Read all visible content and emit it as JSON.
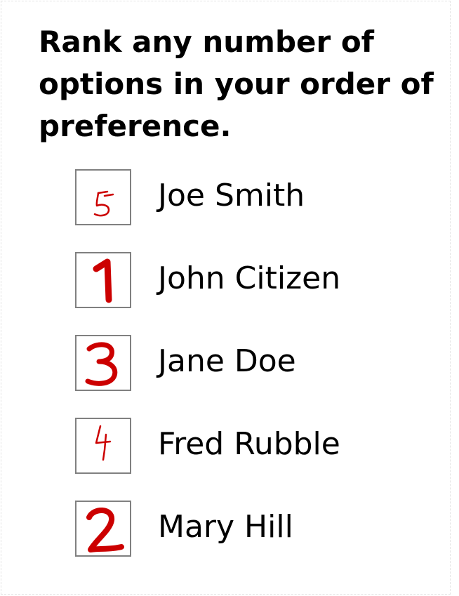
{
  "instruction": "Rank any number of options in your order of preference.",
  "mark_color": "#cc0000",
  "options": [
    {
      "name": "Joe Smith",
      "rank": "5"
    },
    {
      "name": "John Citizen",
      "rank": "1"
    },
    {
      "name": "Jane Doe",
      "rank": "3"
    },
    {
      "name": "Fred Rubble",
      "rank": "4"
    },
    {
      "name": "Mary Hill",
      "rank": "2"
    }
  ]
}
